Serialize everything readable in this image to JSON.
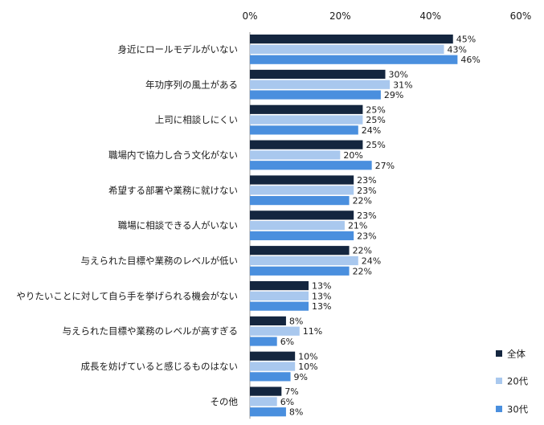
{
  "chart_data": {
    "type": "bar",
    "orientation": "horizontal",
    "xlim": [
      0,
      60
    ],
    "x_ticks": [
      "0%",
      "20%",
      "40%",
      "60%"
    ],
    "x_tick_values": [
      0,
      20,
      40,
      60
    ],
    "value_suffix": "%",
    "grid": false,
    "legend_position": "bottom-right",
    "categories": [
      "身近にロールモデルがいない",
      "年功序列の風土がある",
      "上司に相談しにくい",
      "職場内で協力し合う文化がない",
      "希望する部署や業務に就けない",
      "職場に相談できる人がいない",
      "与えられた目標や業務のレベルが低い",
      "やりたいことに対して自ら手を挙げられる機会がない",
      "与えられた目標や業務のレベルが高すぎる",
      "成長を妨げていると感じるものはない",
      "その他"
    ],
    "series": [
      {
        "name": "全体",
        "color": "#14263f",
        "values": [
          45,
          30,
          25,
          25,
          23,
          23,
          22,
          13,
          8,
          10,
          7
        ]
      },
      {
        "name": "20代",
        "color": "#a9c8ee",
        "values": [
          43,
          31,
          25,
          20,
          23,
          21,
          24,
          13,
          11,
          10,
          6
        ]
      },
      {
        "name": "30代",
        "color": "#4a8fde",
        "values": [
          46,
          29,
          24,
          27,
          22,
          23,
          22,
          13,
          6,
          9,
          8
        ]
      }
    ]
  }
}
